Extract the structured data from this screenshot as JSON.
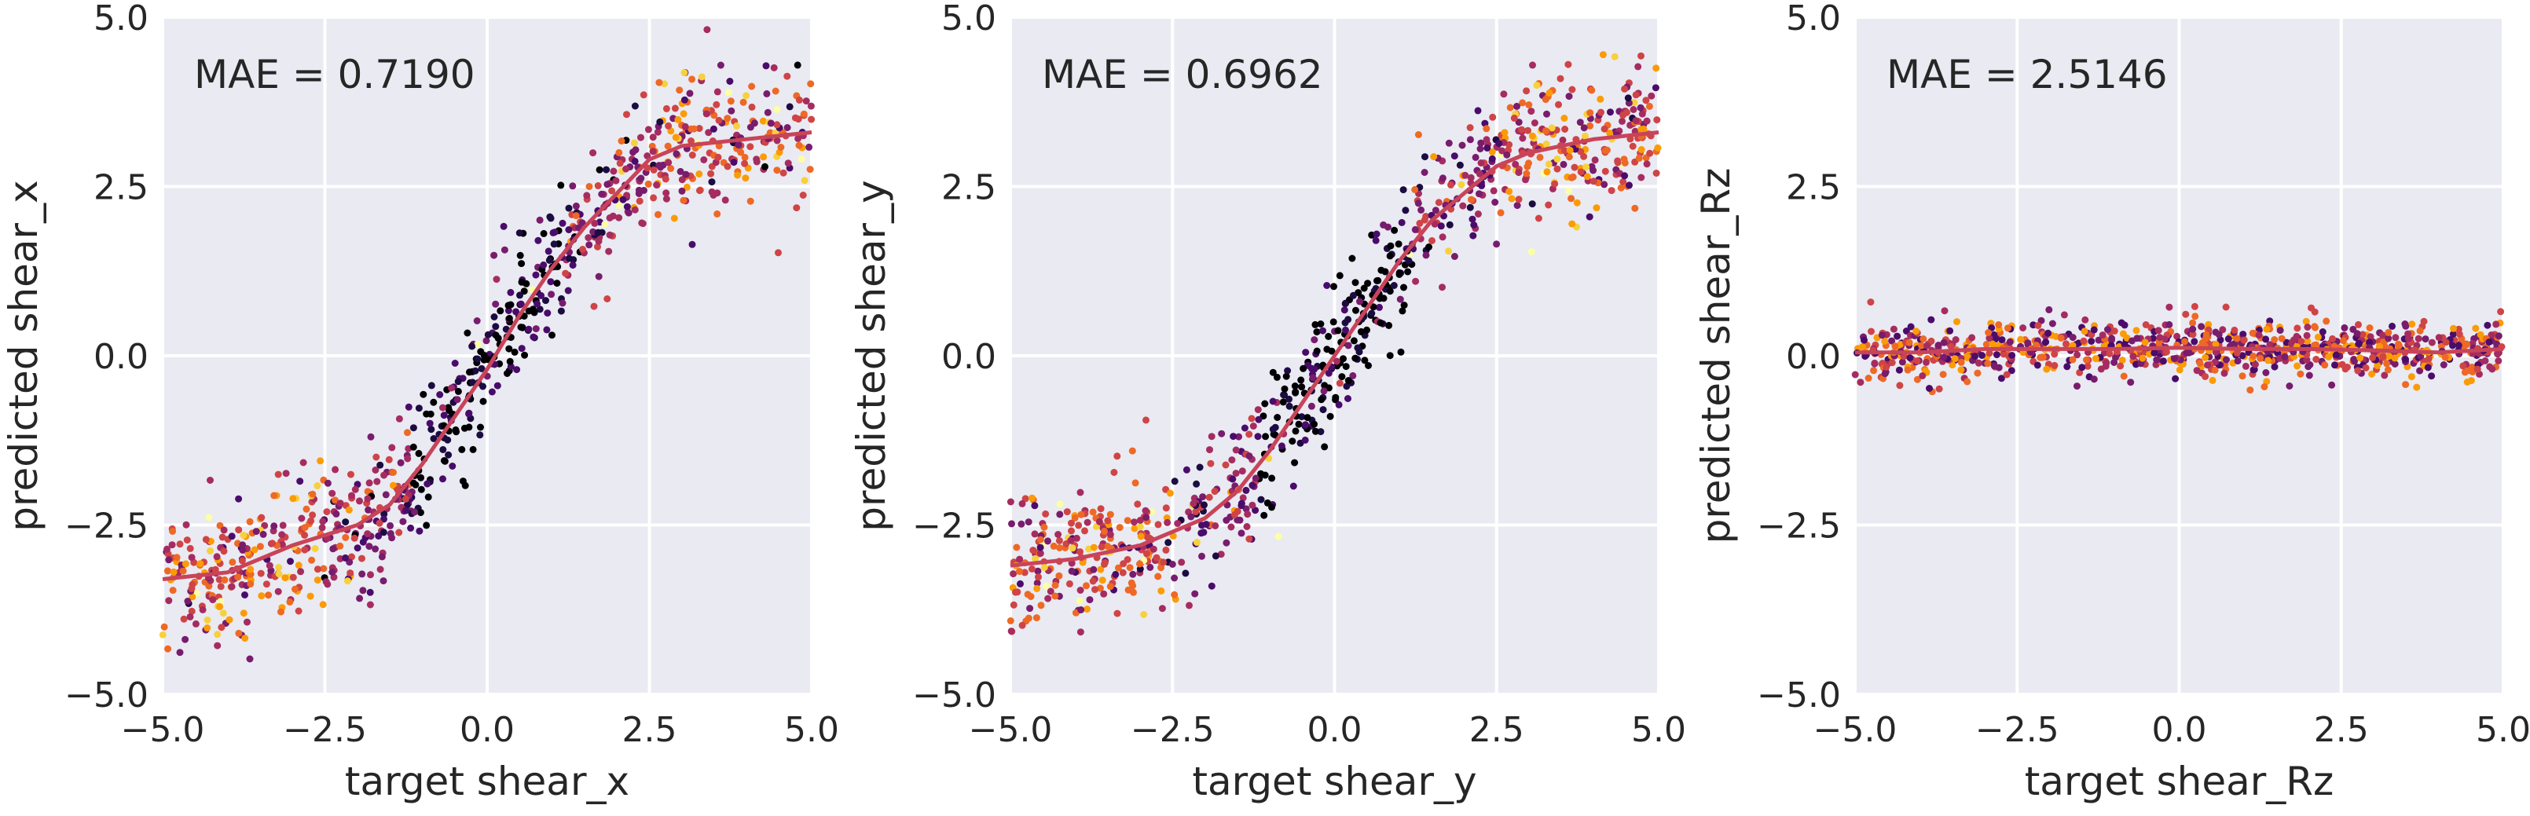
{
  "chart_data": [
    {
      "type": "scatter",
      "annotation": "MAE = 0.7190",
      "xlabel": "target shear_x",
      "ylabel": "predicted shear_x",
      "xlim": [
        -5.0,
        5.0
      ],
      "ylim": [
        -5.0,
        5.0
      ],
      "xticks": [
        "−5.0",
        "−2.5",
        "0.0",
        "2.5",
        "5.0"
      ],
      "yticks": [
        "−5.0",
        "−2.5",
        "0.0",
        "2.5",
        "5.0"
      ],
      "grid": true,
      "pattern": "sigmoid",
      "trend_line": {
        "x": [
          -5.0,
          -4.0,
          -3.0,
          -2.0,
          -1.5,
          -1.0,
          -0.5,
          0.0,
          0.5,
          1.0,
          1.5,
          2.0,
          2.5,
          3.0,
          4.0,
          5.0
        ],
        "y": [
          -3.3,
          -3.2,
          -2.8,
          -2.5,
          -2.2,
          -1.6,
          -0.9,
          -0.2,
          0.6,
          1.3,
          1.9,
          2.4,
          2.9,
          3.1,
          3.2,
          3.3
        ]
      }
    },
    {
      "type": "scatter",
      "annotation": "MAE = 0.6962",
      "xlabel": "target shear_y",
      "ylabel": "predicted shear_y",
      "xlim": [
        -5.0,
        5.0
      ],
      "ylim": [
        -5.0,
        5.0
      ],
      "xticks": [
        "−5.0",
        "−2.5",
        "0.0",
        "2.5",
        "5.0"
      ],
      "yticks": [
        "−5.0",
        "−2.5",
        "0.0",
        "2.5",
        "5.0"
      ],
      "grid": true,
      "pattern": "sigmoid",
      "trend_line": {
        "x": [
          -5.0,
          -4.0,
          -3.0,
          -2.0,
          -1.5,
          -1.0,
          -0.5,
          0.0,
          0.5,
          1.0,
          1.5,
          2.0,
          2.5,
          3.0,
          4.0,
          5.0
        ],
        "y": [
          -3.1,
          -3.0,
          -2.8,
          -2.4,
          -2.0,
          -1.4,
          -0.7,
          0.0,
          0.7,
          1.4,
          2.0,
          2.4,
          2.8,
          3.0,
          3.2,
          3.3
        ]
      }
    },
    {
      "type": "scatter",
      "annotation": "MAE = 2.5146",
      "xlabel": "target shear_Rz",
      "ylabel": "predicted shear_Rz",
      "xlim": [
        -5.0,
        5.0
      ],
      "ylim": [
        -5.0,
        5.0
      ],
      "xticks": [
        "−5.0",
        "−2.5",
        "0.0",
        "2.5",
        "5.0"
      ],
      "yticks": [
        "−5.0",
        "−2.5",
        "0.0",
        "2.5",
        "5.0"
      ],
      "grid": true,
      "pattern": "flat",
      "trend_line": {
        "x": [
          -5.0,
          -4.0,
          -3.0,
          -2.0,
          -1.0,
          0.0,
          1.0,
          2.0,
          3.0,
          4.0,
          5.0
        ],
        "y": [
          0.05,
          0.05,
          0.1,
          0.1,
          0.1,
          0.12,
          0.1,
          0.1,
          0.08,
          0.05,
          0.1
        ]
      }
    }
  ],
  "style": {
    "plot_bg": "#eaeaf2",
    "grid_color": "#ffffff",
    "trend_color": "#c8445a",
    "palette": [
      "#000004",
      "#1b0c41",
      "#4a0c6b",
      "#781c6d",
      "#a52c60",
      "#cf4446",
      "#ed6925",
      "#fb9b06",
      "#f7d13d",
      "#fcffa4"
    ]
  }
}
